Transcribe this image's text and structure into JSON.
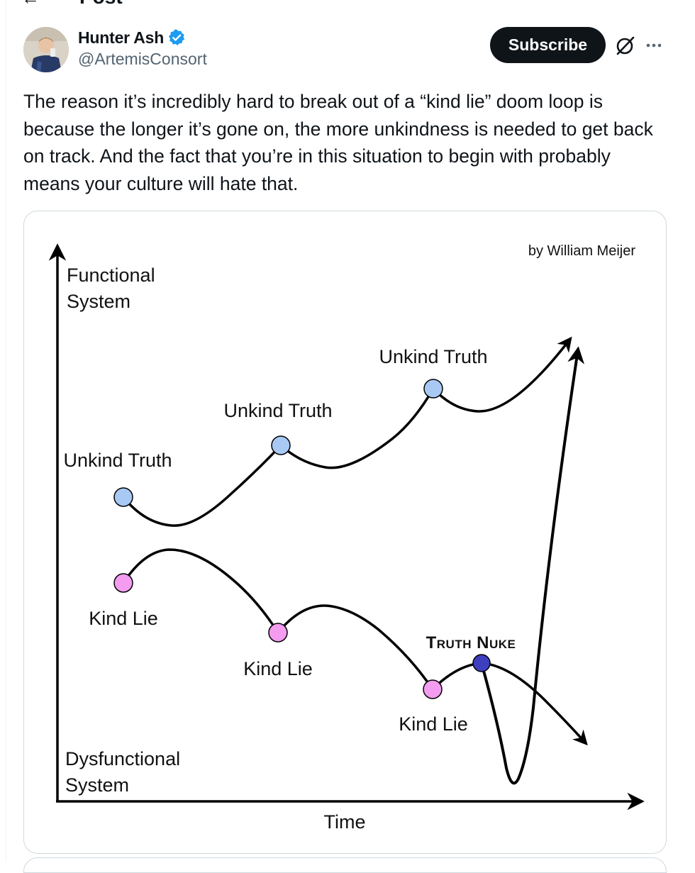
{
  "header": {
    "back_glyph": "←",
    "title": "Post"
  },
  "author": {
    "name": "Hunter Ash",
    "handle": "@ArtemisConsort",
    "verified": true
  },
  "actions": {
    "subscribe_label": "Subscribe",
    "grok_icon": "grok-icon",
    "more_icon": "more-icon"
  },
  "tweet": {
    "text": "The reason it’s incredibly hard to break out of a “kind lie” doom loop is because the longer it’s gone on, the more unkindness is needed to get back on track. And the fact that you’re in this situation to begin with probably means your culture will hate that."
  },
  "diagram": {
    "credit": "by William Meijer",
    "y_top_label_line1": "Functional",
    "y_top_label_line2": "System",
    "y_bottom_label_line1": "Dysfunctional",
    "y_bottom_label_line2": "System",
    "x_label": "Time",
    "truth_labels": [
      "Unkind Truth",
      "Unkind Truth",
      "Unkind Truth"
    ],
    "lie_labels": [
      "Kind Lie",
      "Kind Lie",
      "Kind Lie"
    ],
    "nuke_label": "Truth Nuke",
    "colors": {
      "truth_dot": "#a9c9f5",
      "lie_dot": "#f39cf0",
      "nuke_dot": "#3d3fbf",
      "line": "#000000"
    }
  }
}
